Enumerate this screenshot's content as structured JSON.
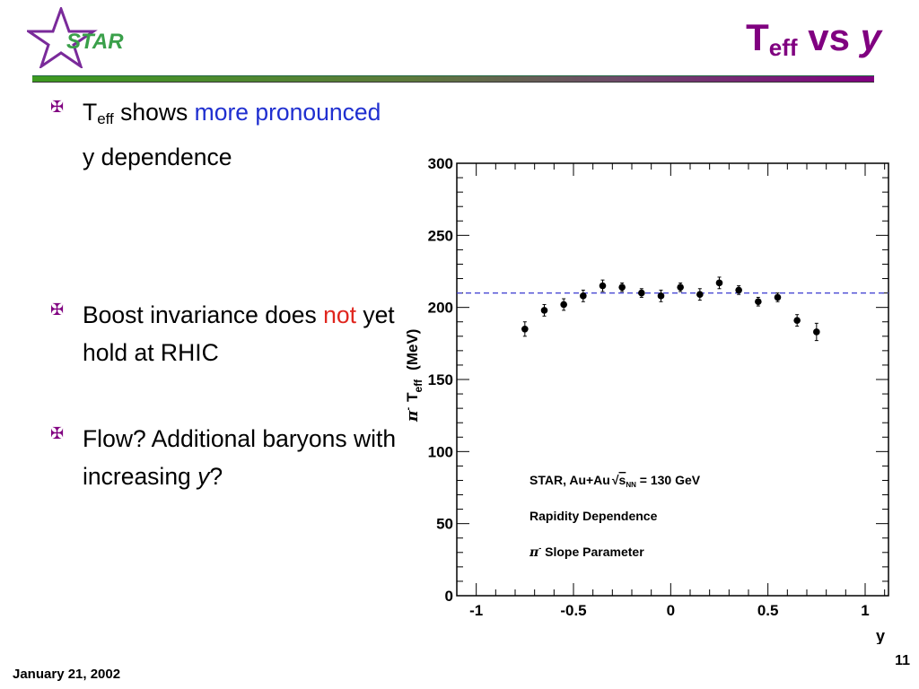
{
  "header": {
    "logo_text": "STAR",
    "title_main": "T",
    "title_sub": "eff",
    "title_vs": "vs",
    "title_var": "y"
  },
  "bullets": [
    {
      "parts": [
        "T",
        "eff",
        " shows ",
        "more pronounced",
        " y dependence"
      ]
    },
    {
      "parts": [
        "Boost invariance does ",
        "not",
        " yet hold at RHIC"
      ]
    },
    {
      "parts": [
        "Flow? Additional baryons with increasing ",
        "y",
        "?"
      ]
    }
  ],
  "footer": {
    "date": "January 21, 2002",
    "page": "11"
  },
  "colors": {
    "title": "#800080",
    "highlight_blue": "#1f2fd0",
    "highlight_red": "#e0261e",
    "fit_line": "#3a3ad0"
  },
  "chart_data": {
    "type": "scatter",
    "xlabel": "y",
    "ylabel": "π⁻ T_eff (MeV)",
    "ylabel_prefix": "π",
    "ylabel_sup": "-",
    "ylabel_main": "T",
    "ylabel_sub": "eff",
    "ylabel_units": "(MeV)",
    "xlim": [
      -1.1,
      1.12
    ],
    "ylim": [
      0,
      300
    ],
    "x_ticks": [
      "-1",
      "-0.5",
      "0",
      "0.5",
      "1"
    ],
    "y_ticks": [
      "0",
      "50",
      "100",
      "150",
      "200",
      "250",
      "300"
    ],
    "annotations": {
      "line1_a": "STAR, Au+Au",
      "line1_b": "s",
      "line1_sub": "NN",
      "line1_c": " = 130 GeV",
      "line2": "Rapidity Dependence",
      "line3_a": "π",
      "line3_sup": "-",
      "line3_b": " Slope Parameter"
    },
    "reference_line": 210,
    "series": [
      {
        "x": [
          -0.75,
          -0.65,
          -0.55,
          -0.45,
          -0.35,
          -0.25,
          -0.15,
          -0.05,
          0.05,
          0.15,
          0.25,
          0.35,
          0.45,
          0.55,
          0.65,
          0.75
        ],
        "y": [
          185,
          198,
          202,
          208,
          215,
          214,
          210,
          208,
          214,
          209,
          217,
          212,
          204,
          207,
          191,
          183
        ],
        "err": [
          5,
          4,
          4,
          4,
          4,
          3,
          3,
          4,
          3,
          4,
          4,
          3,
          3,
          3,
          4,
          6
        ]
      }
    ]
  }
}
